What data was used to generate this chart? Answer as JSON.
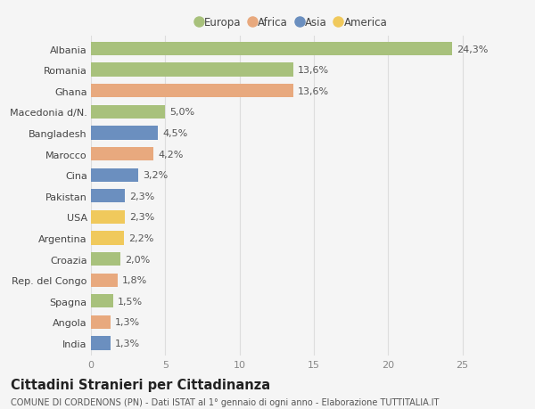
{
  "countries": [
    "Albania",
    "Romania",
    "Ghana",
    "Macedonia d/N.",
    "Bangladesh",
    "Marocco",
    "Cina",
    "Pakistan",
    "USA",
    "Argentina",
    "Croazia",
    "Rep. del Congo",
    "Spagna",
    "Angola",
    "India"
  ],
  "values": [
    24.3,
    13.6,
    13.6,
    5.0,
    4.5,
    4.2,
    3.2,
    2.3,
    2.3,
    2.2,
    2.0,
    1.8,
    1.5,
    1.3,
    1.3
  ],
  "labels": [
    "24,3%",
    "13,6%",
    "13,6%",
    "5,0%",
    "4,5%",
    "4,2%",
    "3,2%",
    "2,3%",
    "2,3%",
    "2,2%",
    "2,0%",
    "1,8%",
    "1,5%",
    "1,3%",
    "1,3%"
  ],
  "continents": [
    "Europa",
    "Europa",
    "Africa",
    "Europa",
    "Asia",
    "Africa",
    "Asia",
    "Asia",
    "America",
    "America",
    "Europa",
    "Africa",
    "Europa",
    "Africa",
    "Asia"
  ],
  "continent_colors": {
    "Europa": "#a8c17c",
    "Africa": "#e8a97e",
    "Asia": "#6b8fbf",
    "America": "#f0c95c"
  },
  "legend_order": [
    "Europa",
    "Africa",
    "Asia",
    "America"
  ],
  "title": "Cittadini Stranieri per Cittadinanza",
  "subtitle": "COMUNE DI CORDENONS (PN) - Dati ISTAT al 1° gennaio di ogni anno - Elaborazione TUTTITALIA.IT",
  "xlim": [
    0,
    27
  ],
  "xticks": [
    0,
    5,
    10,
    15,
    20,
    25
  ],
  "background_color": "#f5f5f5",
  "grid_color": "#dddddd",
  "bar_height": 0.65,
  "label_fontsize": 8,
  "tick_fontsize": 8,
  "title_fontsize": 10.5,
  "subtitle_fontsize": 7
}
